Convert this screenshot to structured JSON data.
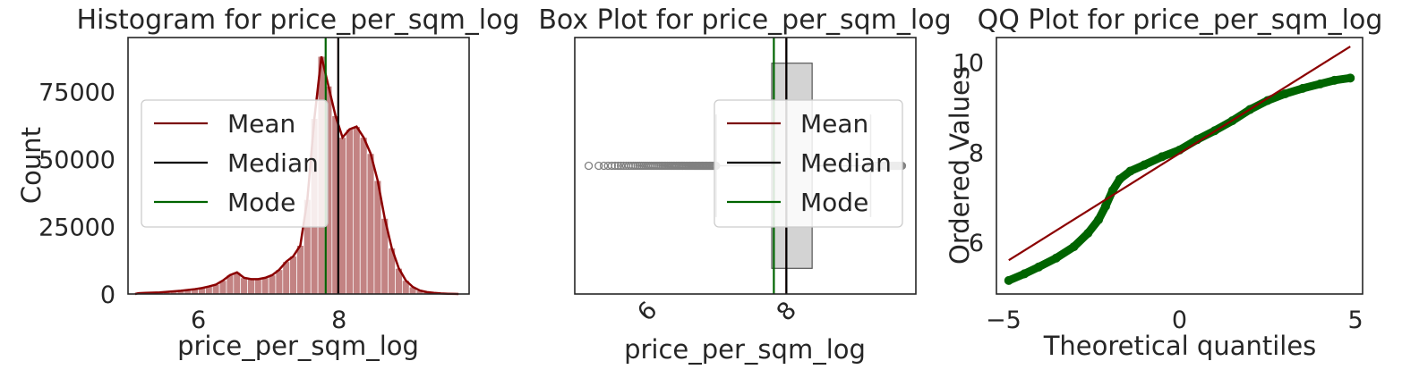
{
  "colors": {
    "mean": "#7b0b0b",
    "median": "#000000",
    "mode": "#006400",
    "hist_fill": "#bd7676",
    "kde": "#8b0000",
    "box_fill": "#d3d3d3",
    "outlier": "#808080",
    "qq_points": "#006400",
    "qq_line": "#8b0000"
  },
  "chart_data": [
    {
      "type": "bar",
      "title": "Histogram for price_per_sqm_log",
      "xlabel": "price_per_sqm_log",
      "ylabel": "Count",
      "xlim": [
        5.0,
        9.85
      ],
      "ylim": [
        0,
        95000
      ],
      "xticks": [
        6,
        8
      ],
      "yticks": [
        0,
        25000,
        50000,
        75000
      ],
      "bin_width": 0.1,
      "bins_x": [
        5.15,
        5.25,
        5.35,
        5.45,
        5.55,
        5.65,
        5.75,
        5.85,
        5.95,
        6.05,
        6.15,
        6.25,
        6.35,
        6.45,
        6.55,
        6.65,
        6.75,
        6.85,
        6.95,
        7.05,
        7.15,
        7.25,
        7.35,
        7.45,
        7.55,
        7.65,
        7.75,
        7.85,
        7.95,
        8.05,
        8.15,
        8.25,
        8.35,
        8.45,
        8.55,
        8.65,
        8.75,
        8.85,
        8.95,
        9.05,
        9.15,
        9.25,
        9.35,
        9.45,
        9.55,
        9.65
      ],
      "counts": [
        300,
        400,
        500,
        600,
        800,
        1000,
        1200,
        1500,
        1800,
        2200,
        2800,
        3500,
        5000,
        7000,
        8000,
        6000,
        5500,
        5500,
        6000,
        7000,
        9000,
        12000,
        14000,
        18000,
        35000,
        65000,
        88000,
        77000,
        66000,
        58000,
        61000,
        62000,
        58000,
        52000,
        42000,
        28000,
        17000,
        9500,
        5000,
        2600,
        1300,
        700,
        400,
        200,
        100,
        50
      ],
      "reference_lines": {
        "mean": 7.99,
        "median": 7.99,
        "mode": 7.81
      },
      "legend": {
        "position": "center-left",
        "entries": [
          "Mean",
          "Median",
          "Mode"
        ]
      }
    },
    {
      "type": "box",
      "title": "Box Plot for price_per_sqm_log",
      "xlabel": "price_per_sqm_log",
      "xlim": [
        4.95,
        9.85
      ],
      "xticks": [
        6,
        8
      ],
      "box": {
        "whisker_low": 6.98,
        "q1": 7.78,
        "median": 7.99,
        "q3": 8.36,
        "whisker_high": 9.2
      },
      "outliers_low_range": [
        5.15,
        6.98
      ],
      "outliers_high_range": [
        9.2,
        9.65
      ],
      "reference_lines": {
        "mean": 7.99,
        "median": 7.99,
        "mode": 7.81
      },
      "legend": {
        "position": "center-right",
        "entries": [
          "Mean",
          "Median",
          "Mode"
        ]
      }
    },
    {
      "type": "scatter",
      "title": "QQ Plot for price_per_sqm_log",
      "xlabel": "Theoretical quantiles",
      "ylabel": "Ordered Values",
      "xlim": [
        -5.2,
        5.2
      ],
      "ylim": [
        4.85,
        10.55
      ],
      "xticks": [
        -5,
        0,
        5
      ],
      "yticks": [
        6,
        8,
        10
      ],
      "points": [
        [
          -4.85,
          5.15
        ],
        [
          -4.4,
          5.3
        ],
        [
          -4.0,
          5.45
        ],
        [
          -3.5,
          5.65
        ],
        [
          -3.0,
          5.9
        ],
        [
          -2.6,
          6.2
        ],
        [
          -2.3,
          6.5
        ],
        [
          -2.1,
          6.8
        ],
        [
          -1.9,
          7.15
        ],
        [
          -1.7,
          7.4
        ],
        [
          -1.4,
          7.58
        ],
        [
          -1.0,
          7.72
        ],
        [
          -0.5,
          7.9
        ],
        [
          0.0,
          8.05
        ],
        [
          0.5,
          8.28
        ],
        [
          1.0,
          8.48
        ],
        [
          1.5,
          8.7
        ],
        [
          2.0,
          8.95
        ],
        [
          2.5,
          9.15
        ],
        [
          3.0,
          9.3
        ],
        [
          3.5,
          9.42
        ],
        [
          4.0,
          9.52
        ],
        [
          4.4,
          9.6
        ],
        [
          4.85,
          9.65
        ]
      ],
      "fit_line": [
        [
          -4.85,
          5.6
        ],
        [
          4.85,
          10.35
        ]
      ]
    }
  ]
}
